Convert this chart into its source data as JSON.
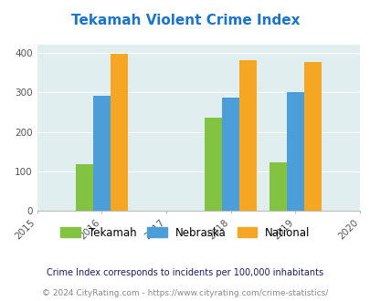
{
  "title": "Tekamah Violent Crime Index",
  "title_color": "#1874CD",
  "years": [
    2016,
    2018,
    2019
  ],
  "tekamah": [
    118,
    236,
    122
  ],
  "nebraska": [
    292,
    287,
    301
  ],
  "national": [
    398,
    381,
    378
  ],
  "tekamah_color": "#82C341",
  "nebraska_color": "#4C9ED9",
  "national_color": "#F5A623",
  "bg_color": "#E0EEF0",
  "xlabel": "",
  "ylabel": "",
  "xlim": [
    2015,
    2020
  ],
  "ylim": [
    0,
    420
  ],
  "yticks": [
    0,
    100,
    200,
    300,
    400
  ],
  "xticks": [
    2015,
    2016,
    2017,
    2018,
    2019,
    2020
  ],
  "bar_width": 0.27,
  "legend_labels": [
    "Tekamah",
    "Nebraska",
    "National"
  ],
  "footnote1": "Crime Index corresponds to incidents per 100,000 inhabitants",
  "footnote2": "© 2024 CityRating.com - https://www.cityrating.com/crime-statistics/",
  "footnote1_color": "#1a1a6e",
  "footnote2_color": "#888888",
  "footnote2_url_color": "#4472C4"
}
